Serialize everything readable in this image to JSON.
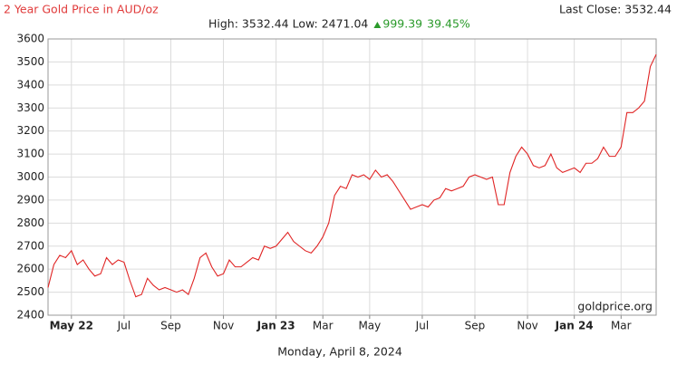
{
  "chart_data": {
    "type": "line",
    "title": "2 Year Gold Price in AUD/oz",
    "last_close": "Last Close: 3532.44",
    "high_low": "High: 3532.44 Low: 2471.04",
    "change": "999.39",
    "change_percent": "39.45%",
    "source": "goldprice.org",
    "date": "Monday, April 8, 2024",
    "categories": [
      null,
      null,
      null,
      null,
      "May 22",
      null,
      null,
      null,
      null,
      null,
      null,
      null,
      null,
      "Jul",
      null,
      null,
      null,
      null,
      null,
      null,
      null,
      "Sep",
      null,
      null,
      null,
      null,
      null,
      null,
      null,
      null,
      "Nov",
      null,
      null,
      null,
      null,
      null,
      null,
      null,
      null,
      "Jan 23",
      null,
      null,
      null,
      null,
      null,
      null,
      null,
      "Mar",
      null,
      null,
      null,
      null,
      null,
      null,
      null,
      "May",
      null,
      null,
      null,
      null,
      null,
      null,
      null,
      null,
      "Jul",
      null,
      null,
      null,
      null,
      null,
      null,
      null,
      null,
      "Sep",
      null,
      null,
      null,
      null,
      null,
      null,
      null,
      null,
      "Nov",
      null,
      null,
      null,
      null,
      null,
      null,
      null,
      "Jan 24",
      null,
      null,
      null,
      null,
      null,
      null,
      null,
      "Mar",
      null,
      null,
      null,
      null,
      null,
      null
    ],
    "series": [
      {
        "name": "Gold Price",
        "color": "#e02424",
        "values": [
          2520,
          2620,
          2660,
          2650,
          2680,
          2620,
          2640,
          2600,
          2570,
          2580,
          2650,
          2620,
          2640,
          2630,
          2550,
          2480,
          2490,
          2560,
          2530,
          2510,
          2520,
          2510,
          2500,
          2510,
          2490,
          2560,
          2650,
          2670,
          2610,
          2570,
          2580,
          2640,
          2610,
          2610,
          2630,
          2650,
          2640,
          2700,
          2690,
          2700,
          2730,
          2760,
          2720,
          2700,
          2680,
          2670,
          2700,
          2740,
          2800,
          2920,
          2960,
          2950,
          3010,
          3000,
          3010,
          2990,
          3030,
          3000,
          3010,
          2980,
          2940,
          2900,
          2860,
          2870,
          2880,
          2870,
          2900,
          2910,
          2950,
          2940,
          2950,
          2960,
          3000,
          3010,
          3000,
          2990,
          3000,
          2880,
          2880,
          3020,
          3090,
          3130,
          3100,
          3050,
          3040,
          3050,
          3100,
          3040,
          3020,
          3030,
          3040,
          3020,
          3060,
          3060,
          3080,
          3130,
          3090,
          3090,
          3130,
          3280,
          3280,
          3300,
          3330,
          3480,
          3532.44
        ]
      }
    ],
    "ylim": [
      2400,
      3600
    ],
    "yticks": [
      2400,
      2500,
      2600,
      2700,
      2800,
      2900,
      3000,
      3100,
      3200,
      3300,
      3400,
      3500,
      3600
    ],
    "grid": true
  }
}
